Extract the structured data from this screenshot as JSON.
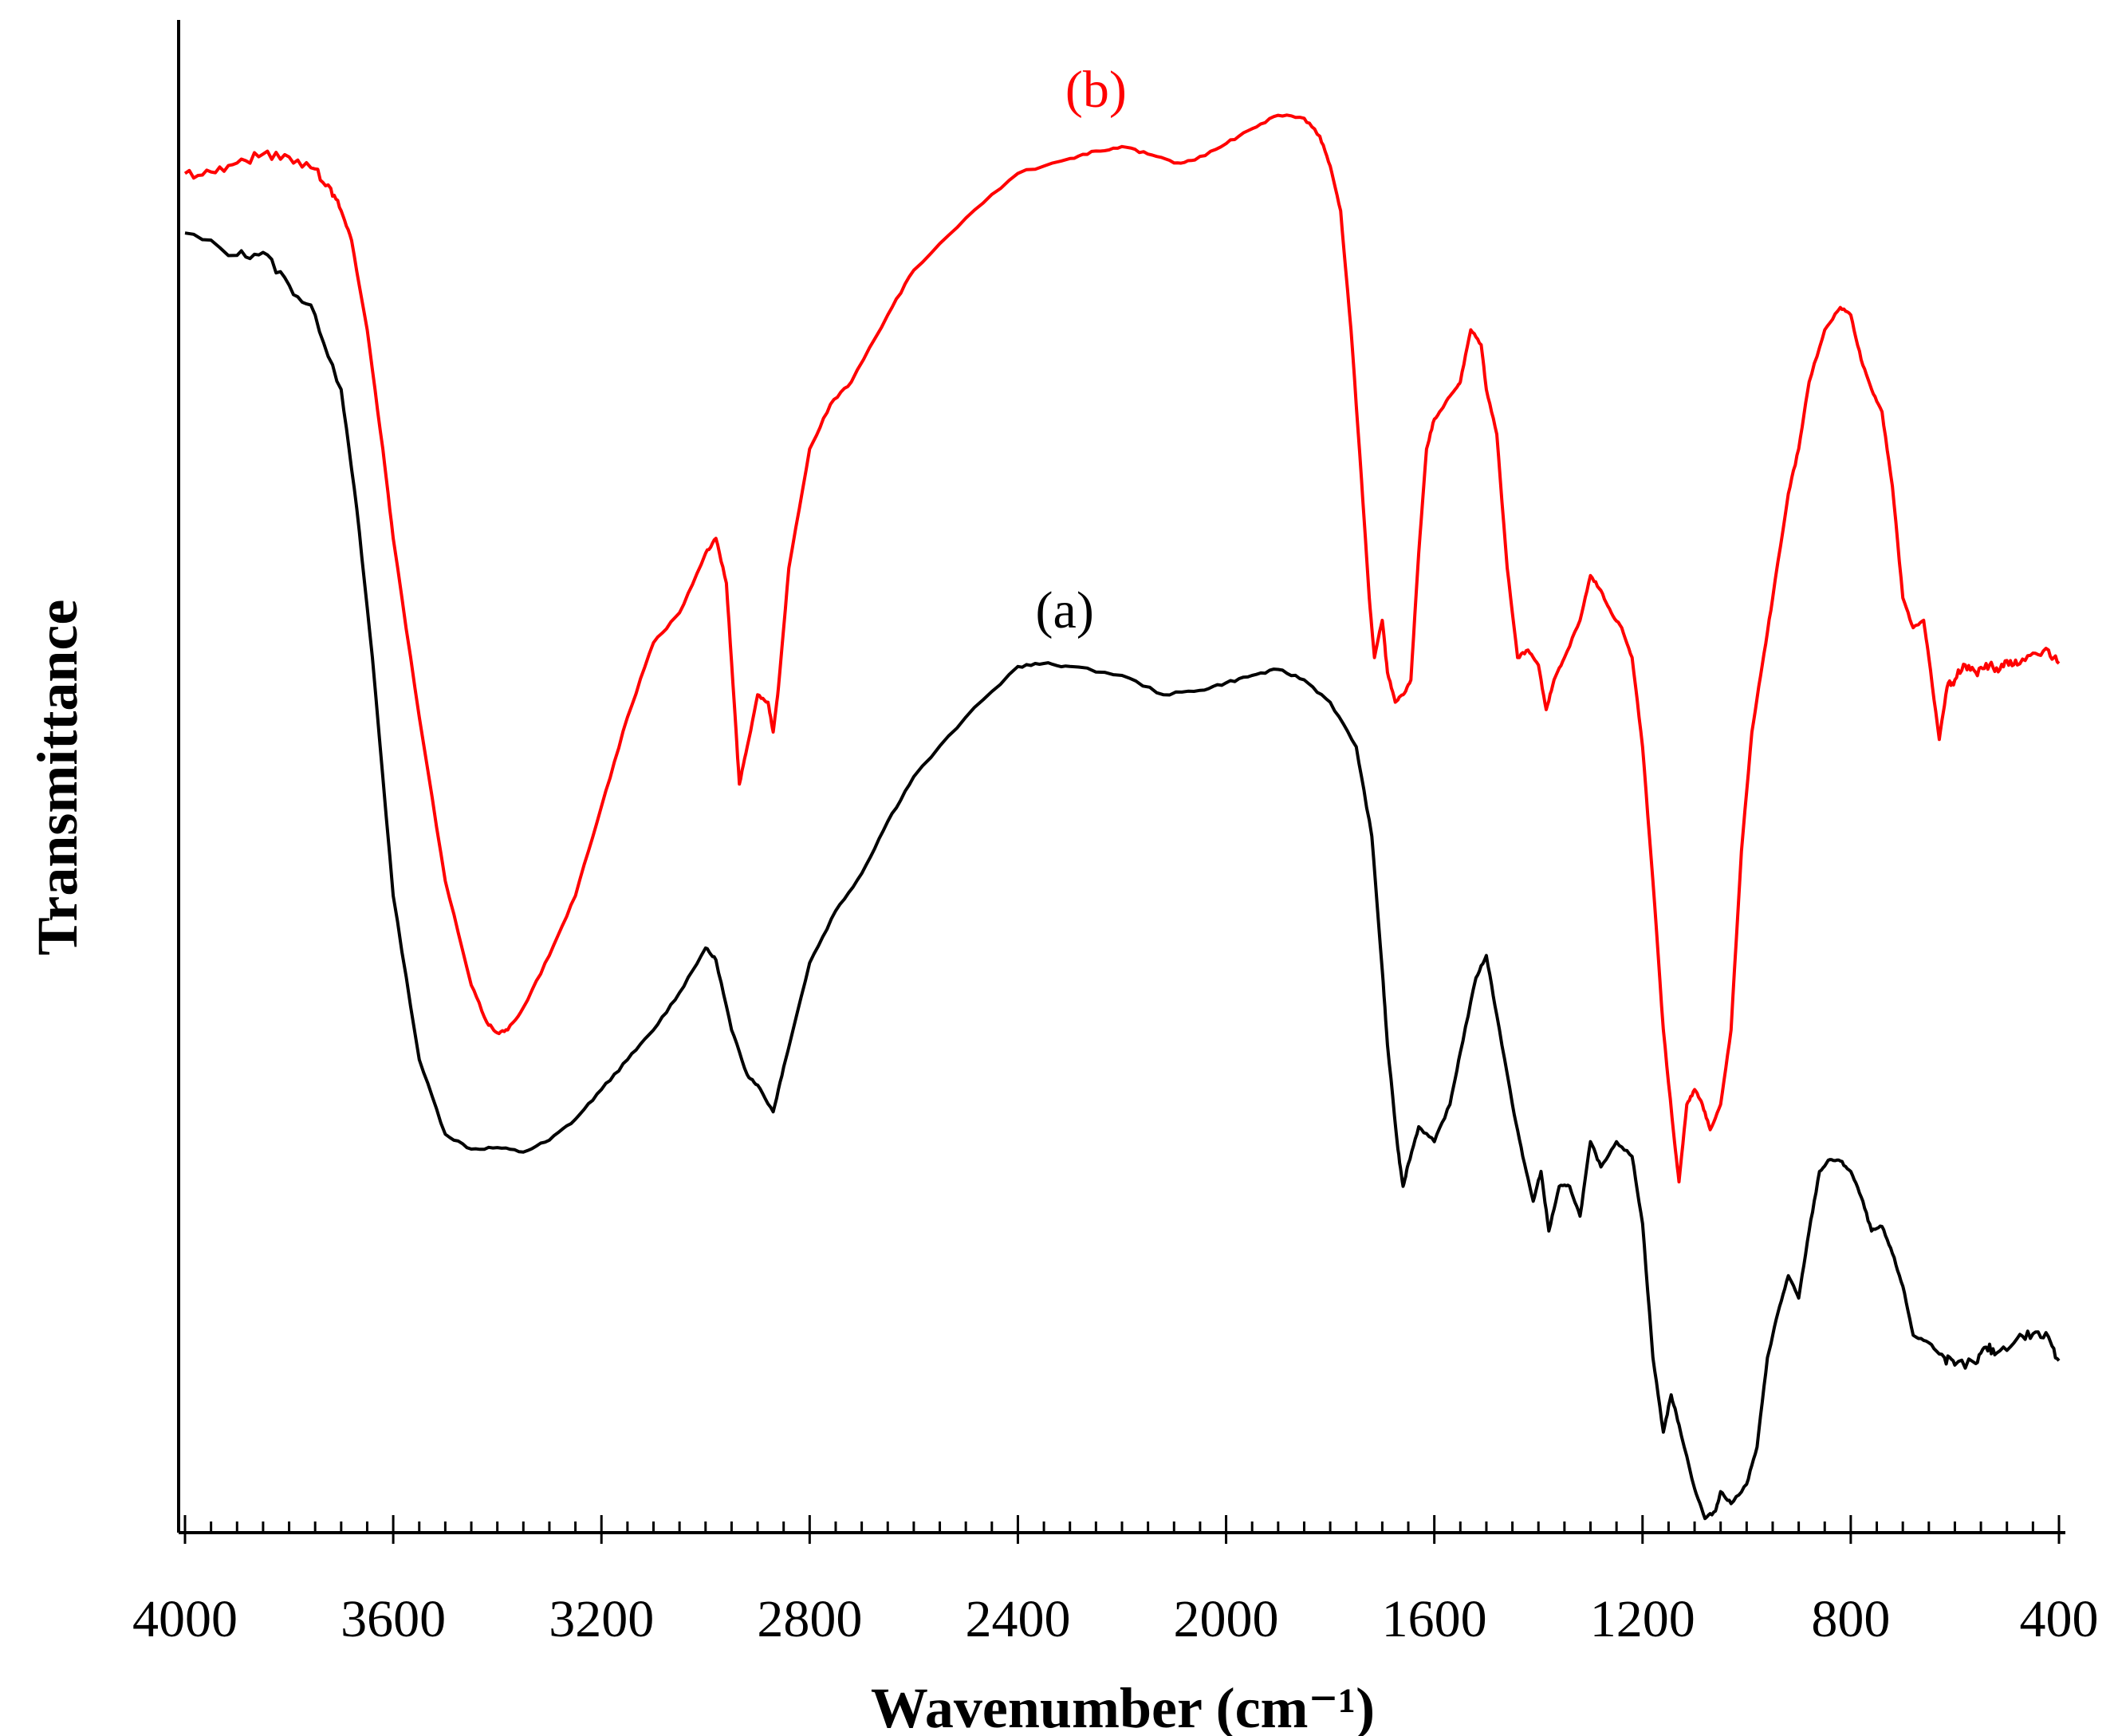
{
  "chart_data": {
    "type": "line",
    "title": "",
    "xlabel": "Wavenumber (cm⁻¹)",
    "ylabel": "Transmittance",
    "xlim": [
      4000,
      400
    ],
    "x_reversed": true,
    "ylim": [
      0,
      100
    ],
    "y_ticks_shown": false,
    "grid": false,
    "x_ticks": [
      4000,
      3600,
      3200,
      2800,
      2400,
      2000,
      1600,
      1200,
      800,
      400
    ],
    "x_tick_labels": [
      "4000",
      "3600",
      "3200",
      "2800",
      "2400",
      "2000",
      "1600",
      "1200",
      "800",
      "400"
    ],
    "series": [
      {
        "name": "(a)",
        "color": "#000000",
        "points": [
          [
            4000,
            86.5
          ],
          [
            3900,
            85
          ],
          [
            3850,
            85.2
          ],
          [
            3800,
            83
          ],
          [
            3750,
            81
          ],
          [
            3700,
            76
          ],
          [
            3670,
            68
          ],
          [
            3640,
            58
          ],
          [
            3600,
            42
          ],
          [
            3550,
            31
          ],
          [
            3500,
            26
          ],
          [
            3450,
            25
          ],
          [
            3400,
            25.1
          ],
          [
            3350,
            24.8
          ],
          [
            3300,
            25.6
          ],
          [
            3250,
            27
          ],
          [
            3200,
            29
          ],
          [
            3150,
            31
          ],
          [
            3100,
            33
          ],
          [
            3050,
            35.5
          ],
          [
            3000,
            38.5
          ],
          [
            2980,
            37.7
          ],
          [
            2950,
            33
          ],
          [
            2920,
            30
          ],
          [
            2900,
            29.3
          ],
          [
            2870,
            27.5
          ],
          [
            2850,
            30.5
          ],
          [
            2800,
            37.5
          ],
          [
            2750,
            41
          ],
          [
            2700,
            43.5
          ],
          [
            2650,
            47
          ],
          [
            2600,
            50
          ],
          [
            2500,
            54
          ],
          [
            2400,
            57.4
          ],
          [
            2350,
            57.6
          ],
          [
            2300,
            57.4
          ],
          [
            2200,
            56.8
          ],
          [
            2120,
            55.5
          ],
          [
            2050,
            55.8
          ],
          [
            2000,
            56.3
          ],
          [
            1950,
            56.8
          ],
          [
            1900,
            57.2
          ],
          [
            1850,
            56.5
          ],
          [
            1800,
            55
          ],
          [
            1750,
            52
          ],
          [
            1720,
            46
          ],
          [
            1700,
            37
          ],
          [
            1690,
            32
          ],
          [
            1670,
            25
          ],
          [
            1660,
            22.5
          ],
          [
            1650,
            24
          ],
          [
            1630,
            26.5
          ],
          [
            1600,
            25.5
          ],
          [
            1570,
            28
          ],
          [
            1550,
            31.5
          ],
          [
            1520,
            36.5
          ],
          [
            1500,
            38
          ],
          [
            1480,
            34
          ],
          [
            1450,
            28
          ],
          [
            1430,
            24.5
          ],
          [
            1410,
            21.5
          ],
          [
            1395,
            23.5
          ],
          [
            1380,
            19.5
          ],
          [
            1360,
            22.5
          ],
          [
            1340,
            22.5
          ],
          [
            1320,
            20.5
          ],
          [
            1300,
            25.5
          ],
          [
            1280,
            23.8
          ],
          [
            1250,
            25.5
          ],
          [
            1220,
            24.5
          ],
          [
            1200,
            20
          ],
          [
            1180,
            11
          ],
          [
            1160,
            6
          ],
          [
            1145,
            8.5
          ],
          [
            1130,
            6.5
          ],
          [
            1100,
            2.2
          ],
          [
            1080,
            0.2
          ],
          [
            1060,
            0.7
          ],
          [
            1050,
            2
          ],
          [
            1030,
            1.2
          ],
          [
            1000,
            2.5
          ],
          [
            980,
            5
          ],
          [
            960,
            11
          ],
          [
            940,
            14
          ],
          [
            920,
            16.5
          ],
          [
            900,
            15
          ],
          [
            880,
            19.5
          ],
          [
            860,
            23.5
          ],
          [
            840,
            24.3
          ],
          [
            820,
            24.2
          ],
          [
            800,
            23.5
          ],
          [
            780,
            21.8
          ],
          [
            760,
            19.5
          ],
          [
            740,
            19.8
          ],
          [
            720,
            18
          ],
          [
            700,
            15.8
          ],
          [
            680,
            12.5
          ],
          [
            650,
            12
          ],
          [
            620,
            11
          ],
          [
            600,
            10.5
          ],
          [
            560,
            10.6
          ],
          [
            540,
            11.7
          ],
          [
            520,
            11.3
          ],
          [
            480,
            12.3
          ],
          [
            450,
            12.6
          ],
          [
            420,
            12.4
          ],
          [
            400,
            10.8
          ]
        ]
      },
      {
        "name": "(b)",
        "color": "#ff0000",
        "points": [
          [
            4000,
            90.5
          ],
          [
            3950,
            90.6
          ],
          [
            3900,
            91.2
          ],
          [
            3850,
            91.8
          ],
          [
            3800,
            91.6
          ],
          [
            3750,
            90.8
          ],
          [
            3720,
            89.5
          ],
          [
            3700,
            88
          ],
          [
            3680,
            86
          ],
          [
            3650,
            80
          ],
          [
            3620,
            72
          ],
          [
            3600,
            66
          ],
          [
            3550,
            54
          ],
          [
            3500,
            43
          ],
          [
            3450,
            36
          ],
          [
            3420,
            33.5
          ],
          [
            3400,
            32.8
          ],
          [
            3380,
            33
          ],
          [
            3350,
            34.5
          ],
          [
            3300,
            38
          ],
          [
            3250,
            42
          ],
          [
            3200,
            48
          ],
          [
            3150,
            54
          ],
          [
            3100,
            59
          ],
          [
            3050,
            61
          ],
          [
            3000,
            65
          ],
          [
            2980,
            66
          ],
          [
            2960,
            63
          ],
          [
            2945,
            55
          ],
          [
            2935,
            49.5
          ],
          [
            2920,
            52
          ],
          [
            2900,
            55.5
          ],
          [
            2880,
            55
          ],
          [
            2870,
            53
          ],
          [
            2860,
            56
          ],
          [
            2840,
            64
          ],
          [
            2800,
            72
          ],
          [
            2760,
            75
          ],
          [
            2720,
            76.5
          ],
          [
            2650,
            81
          ],
          [
            2600,
            84
          ],
          [
            2500,
            87.5
          ],
          [
            2400,
            90.5
          ],
          [
            2300,
            91.5
          ],
          [
            2250,
            92
          ],
          [
            2200,
            92.3
          ],
          [
            2150,
            91.8
          ],
          [
            2100,
            91.2
          ],
          [
            2060,
            91.4
          ],
          [
            2000,
            92.5
          ],
          [
            1950,
            93.5
          ],
          [
            1900,
            94.4
          ],
          [
            1850,
            94.2
          ],
          [
            1820,
            93
          ],
          [
            1800,
            91
          ],
          [
            1780,
            88
          ],
          [
            1760,
            80
          ],
          [
            1740,
            70
          ],
          [
            1725,
            62
          ],
          [
            1715,
            58
          ],
          [
            1700,
            60.5
          ],
          [
            1690,
            57
          ],
          [
            1675,
            55
          ],
          [
            1660,
            55.5
          ],
          [
            1645,
            56.5
          ],
          [
            1630,
            65
          ],
          [
            1615,
            72
          ],
          [
            1600,
            74
          ],
          [
            1580,
            75
          ],
          [
            1560,
            76
          ],
          [
            1550,
            76.5
          ],
          [
            1530,
            80
          ],
          [
            1510,
            79
          ],
          [
            1500,
            76
          ],
          [
            1480,
            73
          ],
          [
            1460,
            64
          ],
          [
            1440,
            58
          ],
          [
            1420,
            58.5
          ],
          [
            1400,
            57.5
          ],
          [
            1385,
            54.5
          ],
          [
            1370,
            56.5
          ],
          [
            1350,
            58
          ],
          [
            1320,
            60.5
          ],
          [
            1300,
            63.5
          ],
          [
            1280,
            62.5
          ],
          [
            1260,
            61
          ],
          [
            1240,
            60
          ],
          [
            1220,
            58
          ],
          [
            1200,
            52
          ],
          [
            1180,
            43
          ],
          [
            1160,
            33
          ],
          [
            1140,
            26
          ],
          [
            1130,
            22.8
          ],
          [
            1115,
            28
          ],
          [
            1100,
            29
          ],
          [
            1085,
            28
          ],
          [
            1070,
            26.3
          ],
          [
            1050,
            28
          ],
          [
            1030,
            33
          ],
          [
            1010,
            45
          ],
          [
            990,
            53
          ],
          [
            970,
            57.5
          ],
          [
            950,
            62
          ],
          [
            920,
            69
          ],
          [
            900,
            72
          ],
          [
            880,
            76.5
          ],
          [
            850,
            80
          ],
          [
            820,
            81.5
          ],
          [
            800,
            81
          ],
          [
            780,
            78
          ],
          [
            760,
            76
          ],
          [
            740,
            74.5
          ],
          [
            720,
            69.5
          ],
          [
            700,
            62
          ],
          [
            680,
            60
          ],
          [
            660,
            60.5
          ],
          [
            650,
            58
          ],
          [
            630,
            52.5
          ],
          [
            615,
            56
          ],
          [
            600,
            56.5
          ],
          [
            580,
            57.5
          ],
          [
            560,
            57
          ],
          [
            540,
            57.6
          ],
          [
            520,
            57.3
          ],
          [
            500,
            57.8
          ],
          [
            480,
            57.5
          ],
          [
            450,
            58.3
          ],
          [
            420,
            58.5
          ],
          [
            400,
            57.6
          ]
        ]
      }
    ]
  }
}
